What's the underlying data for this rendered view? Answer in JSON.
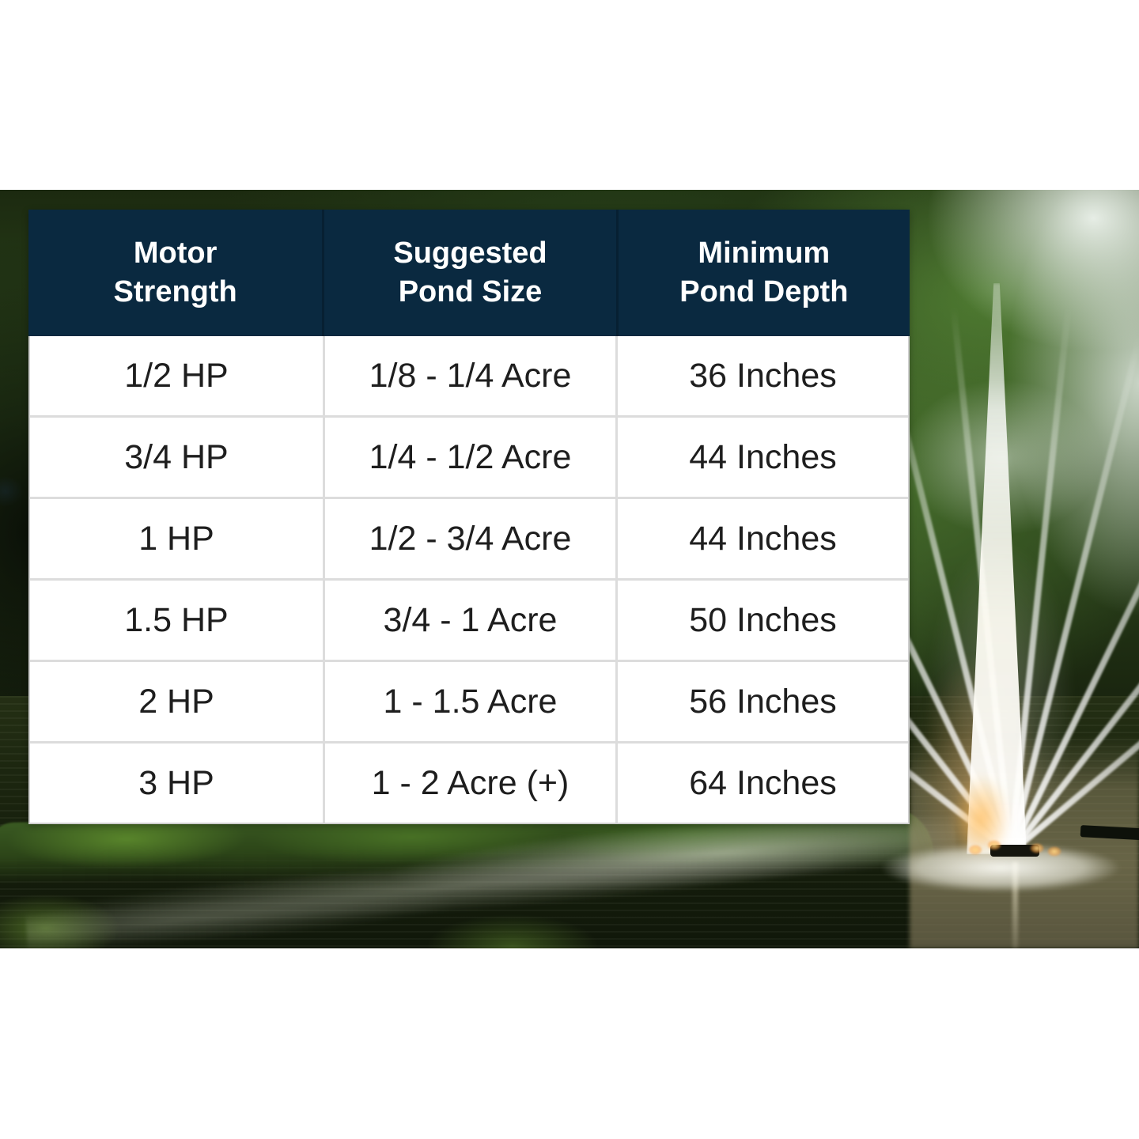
{
  "chart_data": {
    "type": "table",
    "columns": [
      "Motor\nStrength",
      "Suggested\nPond Size",
      "Minimum\nPond Depth"
    ],
    "rows": [
      [
        "1/2 HP",
        "1/8 - 1/4 Acre",
        "36 Inches"
      ],
      [
        "3/4 HP",
        "1/4 - 1/2 Acre",
        "44 Inches"
      ],
      [
        "1 HP",
        "1/2 - 3/4 Acre",
        "44 Inches"
      ],
      [
        "1.5 HP",
        "3/4 - 1 Acre",
        "50 Inches"
      ],
      [
        "2 HP",
        "1 - 1.5 Acre",
        "56 Inches"
      ],
      [
        "3 HP",
        "1 - 2 Acre (+)",
        "64 Inches"
      ]
    ],
    "layout_hints": {
      "header_position": "top",
      "grid": true,
      "background": "photo of pond fountain"
    }
  },
  "colors": {
    "header_bg": "#0a2940",
    "header_text": "#ffffff",
    "cell_text": "#1e1e1e",
    "grid_line": "#dcdcdc",
    "page_bg": "#ffffff"
  },
  "spray_fan": {
    "angles": [
      -52,
      -38,
      -26,
      -14,
      -6,
      6,
      14,
      26,
      38,
      50
    ],
    "heights": [
      430,
      560,
      660,
      710,
      730,
      730,
      710,
      660,
      560,
      430
    ]
  }
}
